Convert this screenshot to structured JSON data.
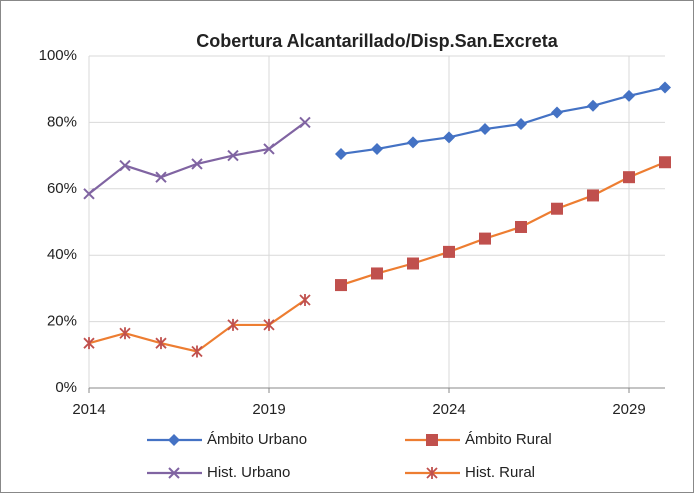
{
  "chart_data": {
    "type": "line",
    "title": "Cobertura Alcantarillado/Disp.San.Excreta",
    "xlim": [
      2014,
      2030
    ],
    "xticks": [
      2014,
      2019,
      2024,
      2029
    ],
    "ylim": [
      0,
      100
    ],
    "yticks": [
      {
        "value": 0,
        "label": "0%"
      },
      {
        "value": 20,
        "label": "20%"
      },
      {
        "value": 40,
        "label": "40%"
      },
      {
        "value": 60,
        "label": "60%"
      },
      {
        "value": 80,
        "label": "80%"
      },
      {
        "value": 100,
        "label": "100%"
      }
    ],
    "grid": true,
    "legend": "bottom",
    "series": [
      {
        "name": "Ámbito Urbano",
        "color": "#4472c4",
        "marker": "diamond",
        "marker_color": "#4472c4",
        "x": [
          2021,
          2022,
          2023,
          2024,
          2025,
          2026,
          2027,
          2028,
          2029,
          2030
        ],
        "values": [
          70.5,
          72,
          74,
          75.5,
          78,
          79.5,
          83,
          85,
          88,
          90.5
        ]
      },
      {
        "name": "Ámbito Rural",
        "color": "#ed7d31",
        "marker": "square",
        "marker_color": "#c0504d",
        "x": [
          2021,
          2022,
          2023,
          2024,
          2025,
          2026,
          2027,
          2028,
          2029,
          2030
        ],
        "values": [
          31,
          34.5,
          37.5,
          41,
          45,
          48.5,
          54,
          58,
          63.5,
          68
        ]
      },
      {
        "name": "Hist. Urbano",
        "color": "#8064a2",
        "marker": "x",
        "marker_color": "#8064a2",
        "x": [
          2014,
          2015,
          2016,
          2017,
          2018,
          2019,
          2020
        ],
        "values": [
          58.5,
          67,
          63.5,
          67.5,
          70,
          72,
          80
        ]
      },
      {
        "name": "Hist. Rural",
        "color": "#ed7d31",
        "marker": "star",
        "marker_color": "#c0504d",
        "x": [
          2014,
          2015,
          2016,
          2017,
          2018,
          2019,
          2020
        ],
        "values": [
          13.5,
          16.5,
          13.5,
          11,
          19,
          19,
          26.5
        ]
      }
    ]
  }
}
